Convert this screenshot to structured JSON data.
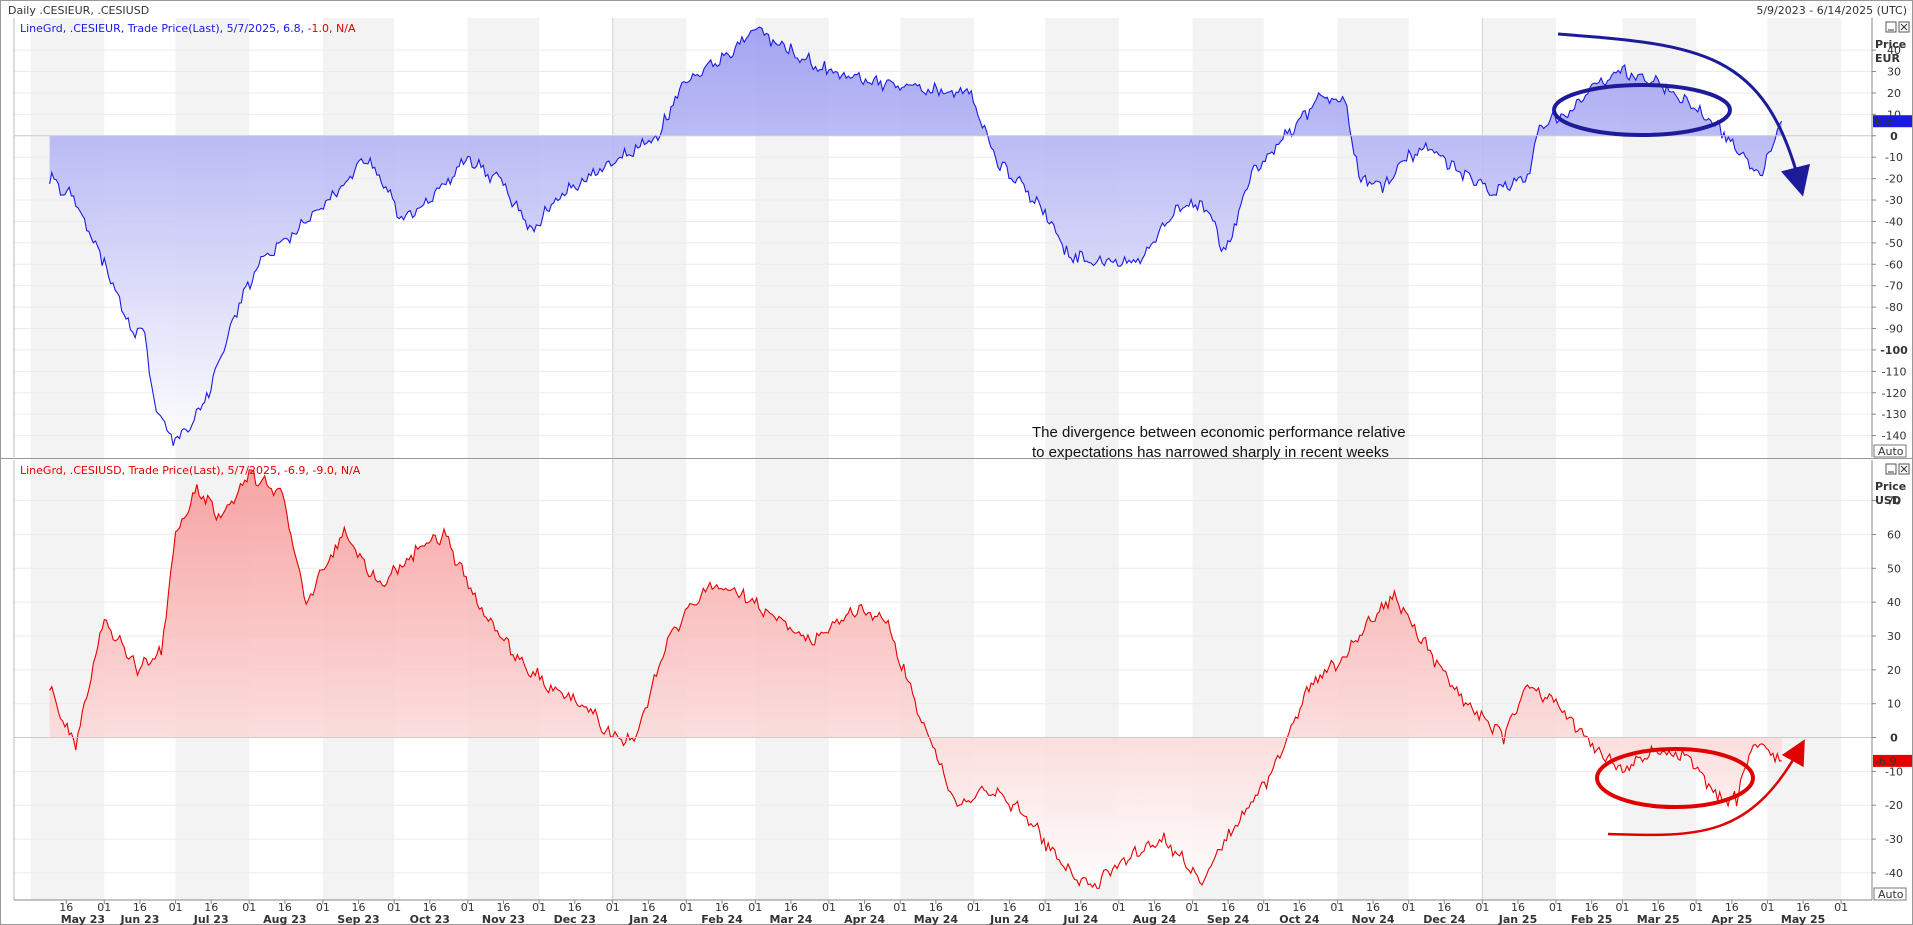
{
  "header": {
    "title": "Daily .CESIEUR, .CESIUSD",
    "range": "5/9/2023 - 6/14/2025 (UTC)"
  },
  "annotation": {
    "line1": "The divergence between economic performance relative",
    "line2": "to expectations has narrowed sharply in recent weeks"
  },
  "colors": {
    "eur": "#1a1ae6",
    "usd": "#e60000",
    "eur_fill": "#b8b8f5",
    "usd_fill": "#fbb8b8",
    "ann_blue": "#1c1c9a",
    "ann_red": "#e00000"
  },
  "chart_data": [
    {
      "type": "area",
      "legend": {
        "prefix": "LineGrd, .CESIEUR, Trade Price(Last), 5/7/2025, 6.8, ",
        "chg": "-1.0, N/A"
      },
      "axis_title": [
        "Price",
        "EUR"
      ],
      "ylim": [
        -150,
        55
      ],
      "yticks": [
        40,
        30,
        20,
        10,
        0,
        -10,
        -20,
        -30,
        -40,
        -50,
        -60,
        -70,
        -80,
        -90,
        -100,
        -110,
        -120,
        -130,
        -140
      ],
      "last_value_label": "6.8",
      "auto_label": "Auto",
      "x": [
        "2023-05-09",
        "2023-05-20",
        "2023-06-01",
        "2023-06-12",
        "2023-06-18",
        "2023-06-22",
        "2023-06-30",
        "2023-07-08",
        "2023-07-15",
        "2023-07-25",
        "2023-08-05",
        "2023-08-20",
        "2023-09-05",
        "2023-09-20",
        "2023-10-05",
        "2023-10-20",
        "2023-11-01",
        "2023-11-15",
        "2023-11-28",
        "2023-12-08",
        "2023-12-20",
        "2024-01-05",
        "2024-01-20",
        "2024-01-31",
        "2024-02-15",
        "2024-03-01",
        "2024-03-15",
        "2024-04-01",
        "2024-04-20",
        "2024-05-10",
        "2024-05-30",
        "2024-06-12",
        "2024-06-14",
        "2024-06-22",
        "2024-07-01",
        "2024-07-10",
        "2024-07-25",
        "2024-08-10",
        "2024-08-25",
        "2024-09-05",
        "2024-09-15",
        "2024-09-25",
        "2024-10-10",
        "2024-10-25",
        "2024-11-05",
        "2024-11-10",
        "2024-11-20",
        "2024-12-01",
        "2024-12-10",
        "2024-12-20",
        "2025-01-05",
        "2025-01-20",
        "2025-01-25",
        "2025-02-05",
        "2025-02-20",
        "2025-03-01",
        "2025-03-15",
        "2025-03-28",
        "2025-04-10",
        "2025-04-20",
        "2025-04-28",
        "2025-05-07"
      ],
      "y": [
        -20,
        -30,
        -60,
        -90,
        -94,
        -125,
        -143,
        -135,
        -120,
        -85,
        -60,
        -45,
        -28,
        -10,
        -40,
        -25,
        -10,
        -22,
        -45,
        -30,
        -20,
        -10,
        0,
        25,
        35,
        50,
        40,
        30,
        25,
        22,
        20,
        -15,
        -15,
        -25,
        -35,
        -55,
        -60,
        -58,
        -35,
        -30,
        -55,
        -20,
        0,
        18,
        15,
        -20,
        -25,
        -10,
        -5,
        -15,
        -25,
        -20,
        5,
        10,
        25,
        30,
        25,
        15,
        5,
        -10,
        -20,
        6.8
      ]
    },
    {
      "type": "area",
      "legend": {
        "prefix": "LineGrd, .CESIUSD, Trade Price(Last), 5/7/2025, -6.9, ",
        "chg": "-9.0, N/A"
      },
      "axis_title": [
        "Price",
        "USD"
      ],
      "ylim": [
        -48,
        82
      ],
      "yticks": [
        70,
        60,
        50,
        40,
        30,
        20,
        10,
        0,
        -10,
        -20,
        -30,
        -40
      ],
      "last_value_label": "-6.9",
      "auto_label": "Auto",
      "x": [
        "2023-05-09",
        "2023-05-20",
        "2023-06-01",
        "2023-06-15",
        "2023-06-25",
        "2023-07-01",
        "2023-07-10",
        "2023-07-20",
        "2023-08-01",
        "2023-08-15",
        "2023-08-25",
        "2023-09-10",
        "2023-09-25",
        "2023-10-10",
        "2023-10-22",
        "2023-11-05",
        "2023-11-20",
        "2023-12-05",
        "2023-12-20",
        "2024-01-01",
        "2024-01-10",
        "2024-01-25",
        "2024-02-10",
        "2024-02-25",
        "2024-03-10",
        "2024-03-25",
        "2024-04-10",
        "2024-04-25",
        "2024-05-10",
        "2024-05-25",
        "2024-06-10",
        "2024-06-25",
        "2024-07-05",
        "2024-07-20",
        "2024-08-05",
        "2024-08-20",
        "2024-09-05",
        "2024-09-20",
        "2024-10-05",
        "2024-10-20",
        "2024-11-05",
        "2024-11-15",
        "2024-11-25",
        "2024-12-10",
        "2024-12-25",
        "2025-01-10",
        "2025-01-20",
        "2025-02-01",
        "2025-02-20",
        "2025-03-01",
        "2025-03-15",
        "2025-03-28",
        "2025-04-10",
        "2025-04-18",
        "2025-04-25",
        "2025-05-07"
      ],
      "y": [
        15,
        -3,
        35,
        20,
        25,
        60,
        73,
        65,
        78,
        72,
        40,
        60,
        45,
        55,
        60,
        40,
        25,
        15,
        10,
        0,
        -1,
        30,
        45,
        42,
        35,
        28,
        38,
        35,
        5,
        -20,
        -15,
        -25,
        -35,
        -45,
        -35,
        -30,
        -42,
        -25,
        -10,
        15,
        25,
        35,
        42,
        25,
        10,
        0,
        15,
        10,
        -5,
        -10,
        -4,
        -5,
        -18,
        -18,
        -2,
        -6.9
      ]
    }
  ],
  "x_axis": {
    "day_ticks": [
      {
        "label": "16",
        "date": "2023-05-16"
      },
      {
        "label": "01",
        "date": "2023-06-01"
      },
      {
        "label": "16",
        "date": "2023-06-16"
      },
      {
        "label": "01",
        "date": "2023-07-01"
      },
      {
        "label": "16",
        "date": "2023-07-16"
      },
      {
        "label": "01",
        "date": "2023-08-01"
      },
      {
        "label": "16",
        "date": "2023-08-16"
      },
      {
        "label": "01",
        "date": "2023-09-01"
      },
      {
        "label": "16",
        "date": "2023-09-16"
      },
      {
        "label": "01",
        "date": "2023-10-01"
      },
      {
        "label": "16",
        "date": "2023-10-16"
      },
      {
        "label": "01",
        "date": "2023-11-01"
      },
      {
        "label": "16",
        "date": "2023-11-16"
      },
      {
        "label": "01",
        "date": "2023-12-01"
      },
      {
        "label": "16",
        "date": "2023-12-16"
      },
      {
        "label": "01",
        "date": "2024-01-01"
      },
      {
        "label": "16",
        "date": "2024-01-16"
      },
      {
        "label": "01",
        "date": "2024-02-01"
      },
      {
        "label": "16",
        "date": "2024-02-16"
      },
      {
        "label": "01",
        "date": "2024-03-01"
      },
      {
        "label": "16",
        "date": "2024-03-16"
      },
      {
        "label": "01",
        "date": "2024-04-01"
      },
      {
        "label": "16",
        "date": "2024-04-16"
      },
      {
        "label": "01",
        "date": "2024-05-01"
      },
      {
        "label": "16",
        "date": "2024-05-16"
      },
      {
        "label": "01",
        "date": "2024-06-01"
      },
      {
        "label": "16",
        "date": "2024-06-16"
      },
      {
        "label": "01",
        "date": "2024-07-01"
      },
      {
        "label": "16",
        "date": "2024-07-16"
      },
      {
        "label": "01",
        "date": "2024-08-01"
      },
      {
        "label": "16",
        "date": "2024-08-16"
      },
      {
        "label": "01",
        "date": "2024-09-01"
      },
      {
        "label": "16",
        "date": "2024-09-16"
      },
      {
        "label": "01",
        "date": "2024-10-01"
      },
      {
        "label": "16",
        "date": "2024-10-16"
      },
      {
        "label": "01",
        "date": "2024-11-01"
      },
      {
        "label": "16",
        "date": "2024-11-16"
      },
      {
        "label": "01",
        "date": "2024-12-01"
      },
      {
        "label": "16",
        "date": "2024-12-16"
      },
      {
        "label": "01",
        "date": "2025-01-01"
      },
      {
        "label": "16",
        "date": "2025-01-16"
      },
      {
        "label": "01",
        "date": "2025-02-01"
      },
      {
        "label": "16",
        "date": "2025-02-16"
      },
      {
        "label": "01",
        "date": "2025-03-01"
      },
      {
        "label": "16",
        "date": "2025-03-16"
      },
      {
        "label": "01",
        "date": "2025-04-01"
      },
      {
        "label": "16",
        "date": "2025-04-16"
      },
      {
        "label": "01",
        "date": "2025-05-01"
      },
      {
        "label": "16",
        "date": "2025-05-16"
      },
      {
        "label": "01",
        "date": "2025-06-01"
      }
    ],
    "month_labels": [
      {
        "label": "May 23",
        "date": "2023-05-23"
      },
      {
        "label": "Jun 23",
        "date": "2023-06-16"
      },
      {
        "label": "Jul 23",
        "date": "2023-07-16"
      },
      {
        "label": "Aug 23",
        "date": "2023-08-16"
      },
      {
        "label": "Sep 23",
        "date": "2023-09-16"
      },
      {
        "label": "Oct 23",
        "date": "2023-10-16"
      },
      {
        "label": "Nov 23",
        "date": "2023-11-16"
      },
      {
        "label": "Dec 23",
        "date": "2023-12-16"
      },
      {
        "label": "Jan 24",
        "date": "2024-01-16"
      },
      {
        "label": "Feb 24",
        "date": "2024-02-16"
      },
      {
        "label": "Mar 24",
        "date": "2024-03-16"
      },
      {
        "label": "Apr 24",
        "date": "2024-04-16"
      },
      {
        "label": "May 24",
        "date": "2024-05-16"
      },
      {
        "label": "Jun 24",
        "date": "2024-06-16"
      },
      {
        "label": "Jul 24",
        "date": "2024-07-16"
      },
      {
        "label": "Aug 24",
        "date": "2024-08-16"
      },
      {
        "label": "Sep 24",
        "date": "2024-09-16"
      },
      {
        "label": "Oct 24",
        "date": "2024-10-16"
      },
      {
        "label": "Nov 24",
        "date": "2024-11-16"
      },
      {
        "label": "Dec 24",
        "date": "2024-12-16"
      },
      {
        "label": "Jan 25",
        "date": "2025-01-16"
      },
      {
        "label": "Feb 25",
        "date": "2025-02-16"
      },
      {
        "label": "Mar 25",
        "date": "2025-03-16"
      },
      {
        "label": "Apr 25",
        "date": "2025-04-16"
      },
      {
        "label": "May 25",
        "date": "2025-05-16"
      }
    ]
  }
}
